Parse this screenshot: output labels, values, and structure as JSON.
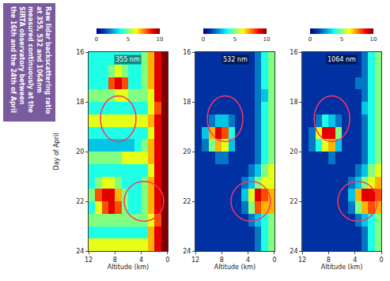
{
  "header": {
    "title": "Raw lidar backscattering ratio at 355, 532 and 1064nm measured continuously at the SIRTA observatory between the 16th and the 24th of April"
  },
  "chart_data": [
    {
      "type": "heatmap",
      "title": "355 nm",
      "color": "Jet",
      "x_label": "Altitude (km)",
      "y_label": "Day of April",
      "x": [
        0.5,
        1.5,
        2.5,
        3.5,
        4.5,
        5.5,
        6.5,
        7.5,
        8.5,
        9.5,
        10.5,
        11.5
      ],
      "y": [
        16.25,
        16.75,
        17.25,
        17.75,
        18.25,
        18.75,
        19.25,
        19.75,
        20.25,
        20.75,
        21.25,
        21.75,
        22.25,
        22.75,
        23.25,
        23.75
      ],
      "z": [
        [
          10,
          9,
          7,
          5,
          4,
          4,
          4,
          4,
          4,
          4,
          4,
          4
        ],
        [
          10,
          9,
          7,
          5,
          4,
          4,
          5,
          6,
          5,
          4,
          4,
          4
        ],
        [
          10,
          9,
          7,
          5,
          4,
          4,
          8,
          9,
          8,
          4,
          4,
          4
        ],
        [
          10,
          9,
          6,
          5,
          5,
          5,
          6,
          6,
          5,
          5,
          5,
          5
        ],
        [
          10,
          8,
          6,
          4,
          4,
          4,
          4,
          4,
          4,
          4,
          4,
          4
        ],
        [
          10,
          9,
          7,
          6,
          6,
          6,
          6,
          6,
          6,
          6,
          6,
          6
        ],
        [
          10,
          9,
          6,
          4,
          4,
          4,
          4,
          4,
          4,
          4,
          4,
          4
        ],
        [
          10,
          9,
          7,
          5,
          4,
          3,
          3,
          3,
          3,
          3,
          3,
          3
        ],
        [
          10,
          9,
          7,
          6,
          6,
          6,
          6,
          5,
          5,
          5,
          5,
          5
        ],
        [
          10,
          9,
          6,
          4,
          4,
          4,
          4,
          4,
          4,
          4,
          4,
          4
        ],
        [
          10,
          9,
          7,
          5,
          4,
          4,
          4,
          5,
          6,
          6,
          5,
          4
        ],
        [
          10,
          9,
          7,
          5,
          4,
          4,
          5,
          7,
          9,
          9,
          8,
          5
        ],
        [
          10,
          9,
          7,
          5,
          4,
          4,
          5,
          8,
          9,
          8,
          6,
          4
        ],
        [
          10,
          8,
          6,
          5,
          5,
          5,
          5,
          5,
          5,
          5,
          5,
          5
        ],
        [
          10,
          9,
          7,
          4,
          4,
          4,
          4,
          4,
          4,
          4,
          4,
          4
        ],
        [
          10,
          9,
          7,
          6,
          6,
          6,
          6,
          6,
          6,
          6,
          6,
          6
        ]
      ],
      "xlim": [
        12,
        0
      ],
      "ylim": [
        24,
        16
      ],
      "xticks": [
        0,
        4,
        8,
        12
      ],
      "yticks": [
        16,
        18,
        20,
        22,
        24
      ],
      "colorbar": {
        "range": [
          0,
          10
        ],
        "ticks": [
          0,
          5,
          10
        ]
      }
    },
    {
      "type": "heatmap",
      "title": "532 nm",
      "color": "Jet",
      "x_label": "Altitude (km)",
      "x": [
        0.5,
        1.5,
        2.5,
        3.5,
        4.5,
        5.5,
        6.5,
        7.5,
        8.5,
        9.5,
        10.5,
        11.5
      ],
      "y": [
        16.25,
        16.75,
        17.25,
        17.75,
        18.25,
        18.75,
        19.25,
        19.75,
        20.25,
        20.75,
        21.25,
        21.75,
        22.25,
        22.75,
        23.25,
        23.75
      ],
      "z": [
        [
          5,
          4,
          2,
          1,
          1,
          1,
          1,
          1,
          1,
          1,
          1,
          1
        ],
        [
          5,
          4,
          2,
          1,
          1,
          1,
          1,
          1,
          1,
          1,
          1,
          1
        ],
        [
          5,
          4,
          2,
          1,
          1,
          1,
          1,
          1,
          1,
          1,
          1,
          1
        ],
        [
          5,
          3,
          2,
          1,
          1,
          1,
          1,
          1,
          1,
          1,
          1,
          1
        ],
        [
          5,
          4,
          2,
          1,
          1,
          1,
          1,
          1,
          1,
          1,
          1,
          1
        ],
        [
          5,
          4,
          2,
          1,
          1,
          1,
          2,
          3,
          3,
          2,
          1,
          1
        ],
        [
          5,
          4,
          2,
          1,
          1,
          1,
          4,
          8,
          9,
          7,
          3,
          1
        ],
        [
          5,
          4,
          2,
          1,
          1,
          1,
          3,
          6,
          7,
          5,
          2,
          1
        ],
        [
          5,
          4,
          2,
          1,
          1,
          1,
          1,
          2,
          2,
          1,
          1,
          1
        ],
        [
          6,
          5,
          3,
          2,
          1,
          1,
          1,
          1,
          1,
          1,
          1,
          1
        ],
        [
          6,
          6,
          5,
          3,
          2,
          1,
          1,
          1,
          1,
          1,
          1,
          1
        ],
        [
          7,
          8,
          9,
          6,
          3,
          1,
          1,
          1,
          1,
          1,
          1,
          1
        ],
        [
          7,
          7,
          8,
          5,
          2,
          1,
          1,
          1,
          1,
          1,
          1,
          1
        ],
        [
          5,
          4,
          3,
          2,
          1,
          1,
          1,
          1,
          1,
          1,
          1,
          1
        ],
        [
          5,
          4,
          2,
          1,
          1,
          1,
          1,
          1,
          1,
          1,
          1,
          1
        ],
        [
          5,
          4,
          2,
          1,
          1,
          1,
          1,
          1,
          1,
          1,
          1,
          1
        ]
      ],
      "xlim": [
        12,
        0
      ],
      "ylim": [
        24,
        16
      ],
      "xticks": [
        0,
        4,
        8,
        12
      ],
      "yticks": [
        16,
        18,
        20,
        22,
        24
      ],
      "colorbar": {
        "range": [
          0,
          10
        ],
        "ticks": [
          0,
          5,
          10
        ]
      }
    },
    {
      "type": "heatmap",
      "title": "1064 nm",
      "color": "Jet",
      "x_label": "Altitude (km)",
      "x": [
        0.5,
        1.5,
        2.5,
        3.5,
        4.5,
        5.5,
        6.5,
        7.5,
        8.5,
        9.5,
        10.5,
        11.5
      ],
      "y": [
        16.25,
        16.75,
        17.25,
        17.75,
        18.25,
        18.75,
        19.25,
        19.75,
        20.25,
        20.75,
        21.25,
        21.75,
        22.25,
        22.75,
        23.25,
        23.75
      ],
      "z": [
        [
          5,
          4,
          2,
          1,
          1,
          1,
          1,
          1,
          1,
          1,
          1,
          1
        ],
        [
          5,
          4,
          2,
          1,
          1,
          1,
          1,
          1,
          1,
          1,
          1,
          1
        ],
        [
          5,
          4,
          2,
          2,
          1,
          1,
          1,
          1,
          1,
          1,
          1,
          1
        ],
        [
          5,
          4,
          2,
          1,
          1,
          1,
          1,
          1,
          1,
          1,
          1,
          1
        ],
        [
          5,
          4,
          3,
          1,
          1,
          1,
          1,
          1,
          1,
          1,
          1,
          1
        ],
        [
          5,
          4,
          2,
          1,
          1,
          1,
          2,
          3,
          4,
          2,
          1,
          1
        ],
        [
          5,
          4,
          2,
          1,
          1,
          1,
          5,
          9,
          9,
          6,
          2,
          1
        ],
        [
          5,
          4,
          2,
          1,
          1,
          1,
          3,
          7,
          6,
          4,
          2,
          1
        ],
        [
          5,
          4,
          2,
          1,
          1,
          1,
          1,
          2,
          1,
          1,
          1,
          1
        ],
        [
          6,
          5,
          3,
          2,
          1,
          1,
          1,
          1,
          1,
          1,
          1,
          1
        ],
        [
          7,
          6,
          5,
          3,
          2,
          1,
          1,
          1,
          1,
          1,
          1,
          1
        ],
        [
          8,
          9,
          9,
          7,
          3,
          1,
          1,
          1,
          1,
          1,
          1,
          1
        ],
        [
          7,
          8,
          7,
          5,
          2,
          1,
          1,
          1,
          1,
          1,
          1,
          1
        ],
        [
          5,
          4,
          3,
          2,
          1,
          1,
          1,
          1,
          1,
          1,
          1,
          1
        ],
        [
          5,
          4,
          2,
          1,
          1,
          1,
          1,
          1,
          1,
          1,
          1,
          1
        ],
        [
          5,
          4,
          2,
          1,
          1,
          1,
          1,
          1,
          1,
          1,
          1,
          1
        ]
      ],
      "xlim": [
        12,
        0
      ],
      "ylim": [
        24,
        16
      ],
      "xticks": [
        0,
        4,
        8,
        12
      ],
      "yticks": [
        16,
        18,
        20,
        22,
        24
      ],
      "colorbar": {
        "range": [
          0,
          10
        ],
        "ticks": [
          0,
          5,
          10
        ]
      }
    }
  ]
}
